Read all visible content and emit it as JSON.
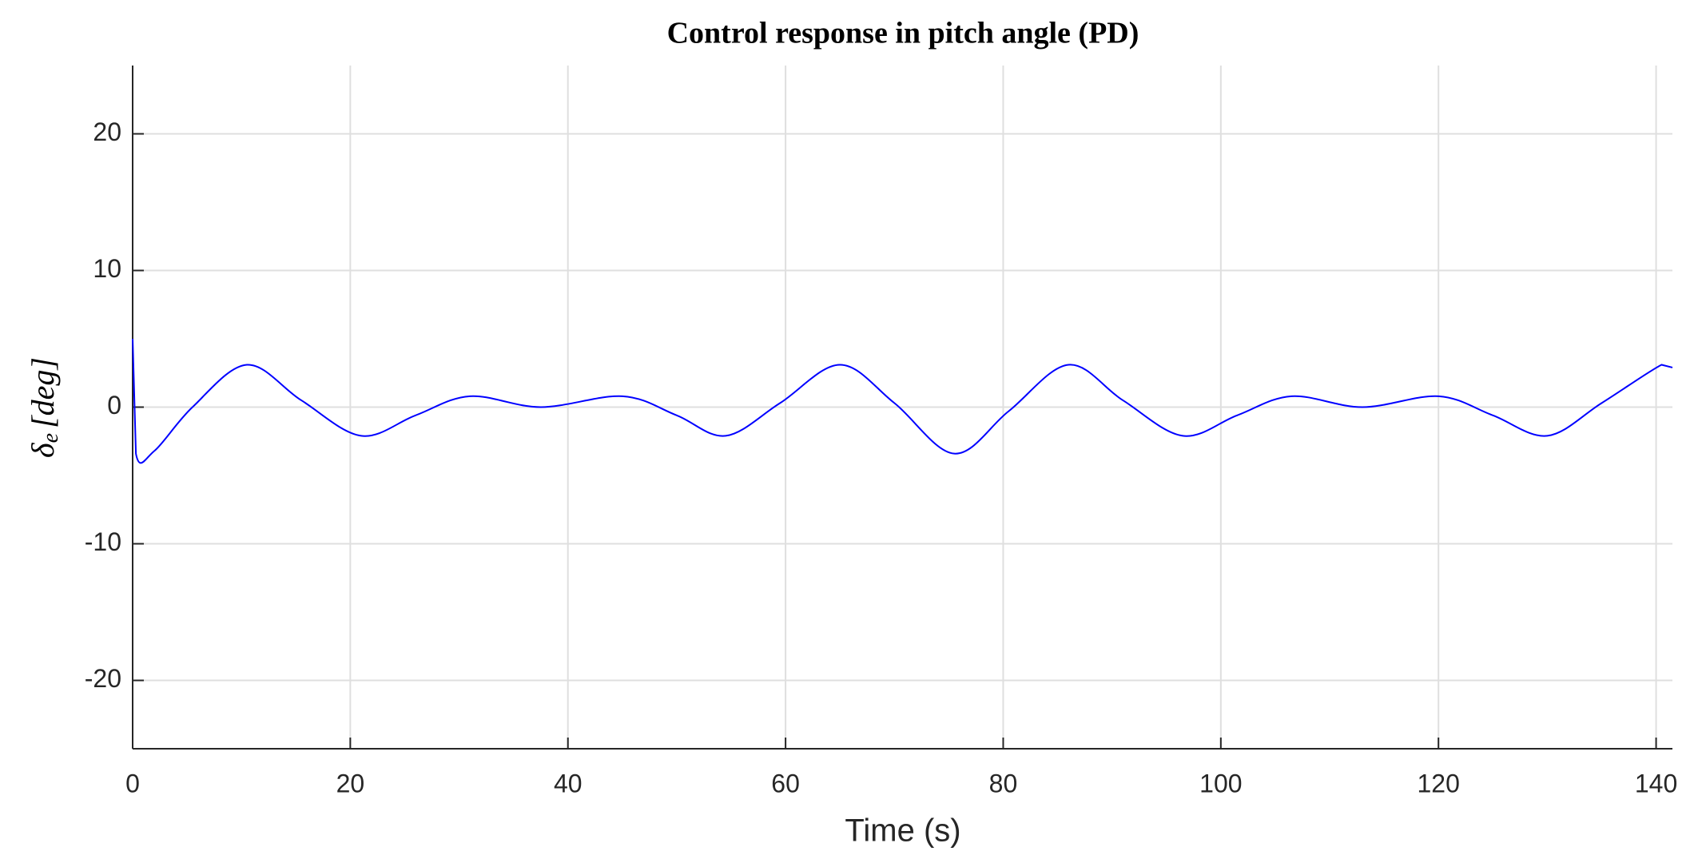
{
  "chart_data": {
    "type": "line",
    "title": "Control response in pitch angle (PD)",
    "xlabel": "Time (s)",
    "ylabel_symbol": "δ",
    "ylabel_subscript": "e",
    "ylabel_unit": "[deg]",
    "xlim": [
      0,
      141.5
    ],
    "ylim": [
      -25,
      25
    ],
    "xticks": [
      0,
      20,
      40,
      60,
      80,
      100,
      120,
      140
    ],
    "yticks": [
      -20,
      -10,
      0,
      10,
      20
    ],
    "grid": true,
    "x": [
      0,
      0.3,
      2,
      5.5,
      10.5,
      15.5,
      21,
      26,
      31,
      37.5,
      45,
      50,
      54.5,
      59.5,
      65,
      70,
      75.5,
      80.5,
      86,
      91,
      96.5,
      101.5,
      106.5,
      113,
      120,
      125,
      130,
      135,
      140.5,
      141.5
    ],
    "series": [
      {
        "color": "#0000ff",
        "values": [
          5,
          -3.4,
          -3.2,
          0,
          3.1,
          0.5,
          -2.1,
          -0.6,
          0.8,
          0,
          0.8,
          -0.6,
          -2.1,
          0.3,
          3.1,
          0.3,
          -3.4,
          -0.3,
          3.1,
          0.5,
          -2.1,
          -0.6,
          0.8,
          0,
          0.8,
          -0.6,
          -2.1,
          0.3,
          3.1,
          2.9
        ]
      }
    ]
  }
}
